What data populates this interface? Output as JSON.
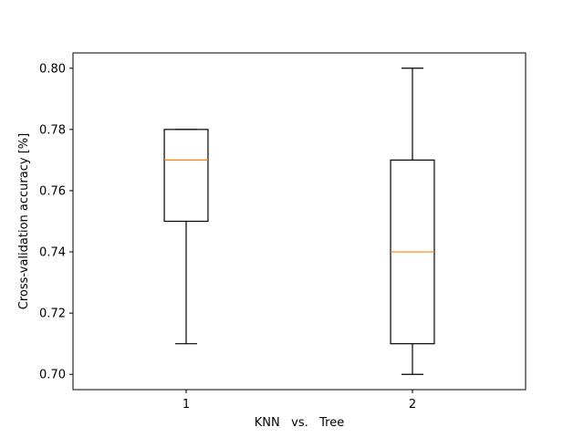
{
  "chart_data": {
    "type": "box",
    "title": "",
    "xlabel": "KNN   vs.   Tree",
    "ylabel": "Cross-validation accuracy [%]",
    "categories": [
      "1",
      "2"
    ],
    "boxes": [
      {
        "category": "1",
        "whisker_low": 0.71,
        "q1": 0.75,
        "median": 0.77,
        "q3": 0.78,
        "whisker_high": 0.78
      },
      {
        "category": "2",
        "whisker_low": 0.7,
        "q1": 0.71,
        "median": 0.74,
        "q3": 0.77,
        "whisker_high": 0.8
      }
    ],
    "ylim": [
      0.695,
      0.805
    ],
    "yticks": [
      0.7,
      0.72,
      0.74,
      0.76,
      0.78,
      0.8
    ],
    "ytick_labels": [
      "0.70",
      "0.72",
      "0.74",
      "0.76",
      "0.78",
      "0.80"
    ],
    "xlim": [
      0.5,
      2.5
    ],
    "grid": false,
    "colors": {
      "box": "#000000",
      "median": "#ff7f0e",
      "background": "#ffffff"
    }
  }
}
